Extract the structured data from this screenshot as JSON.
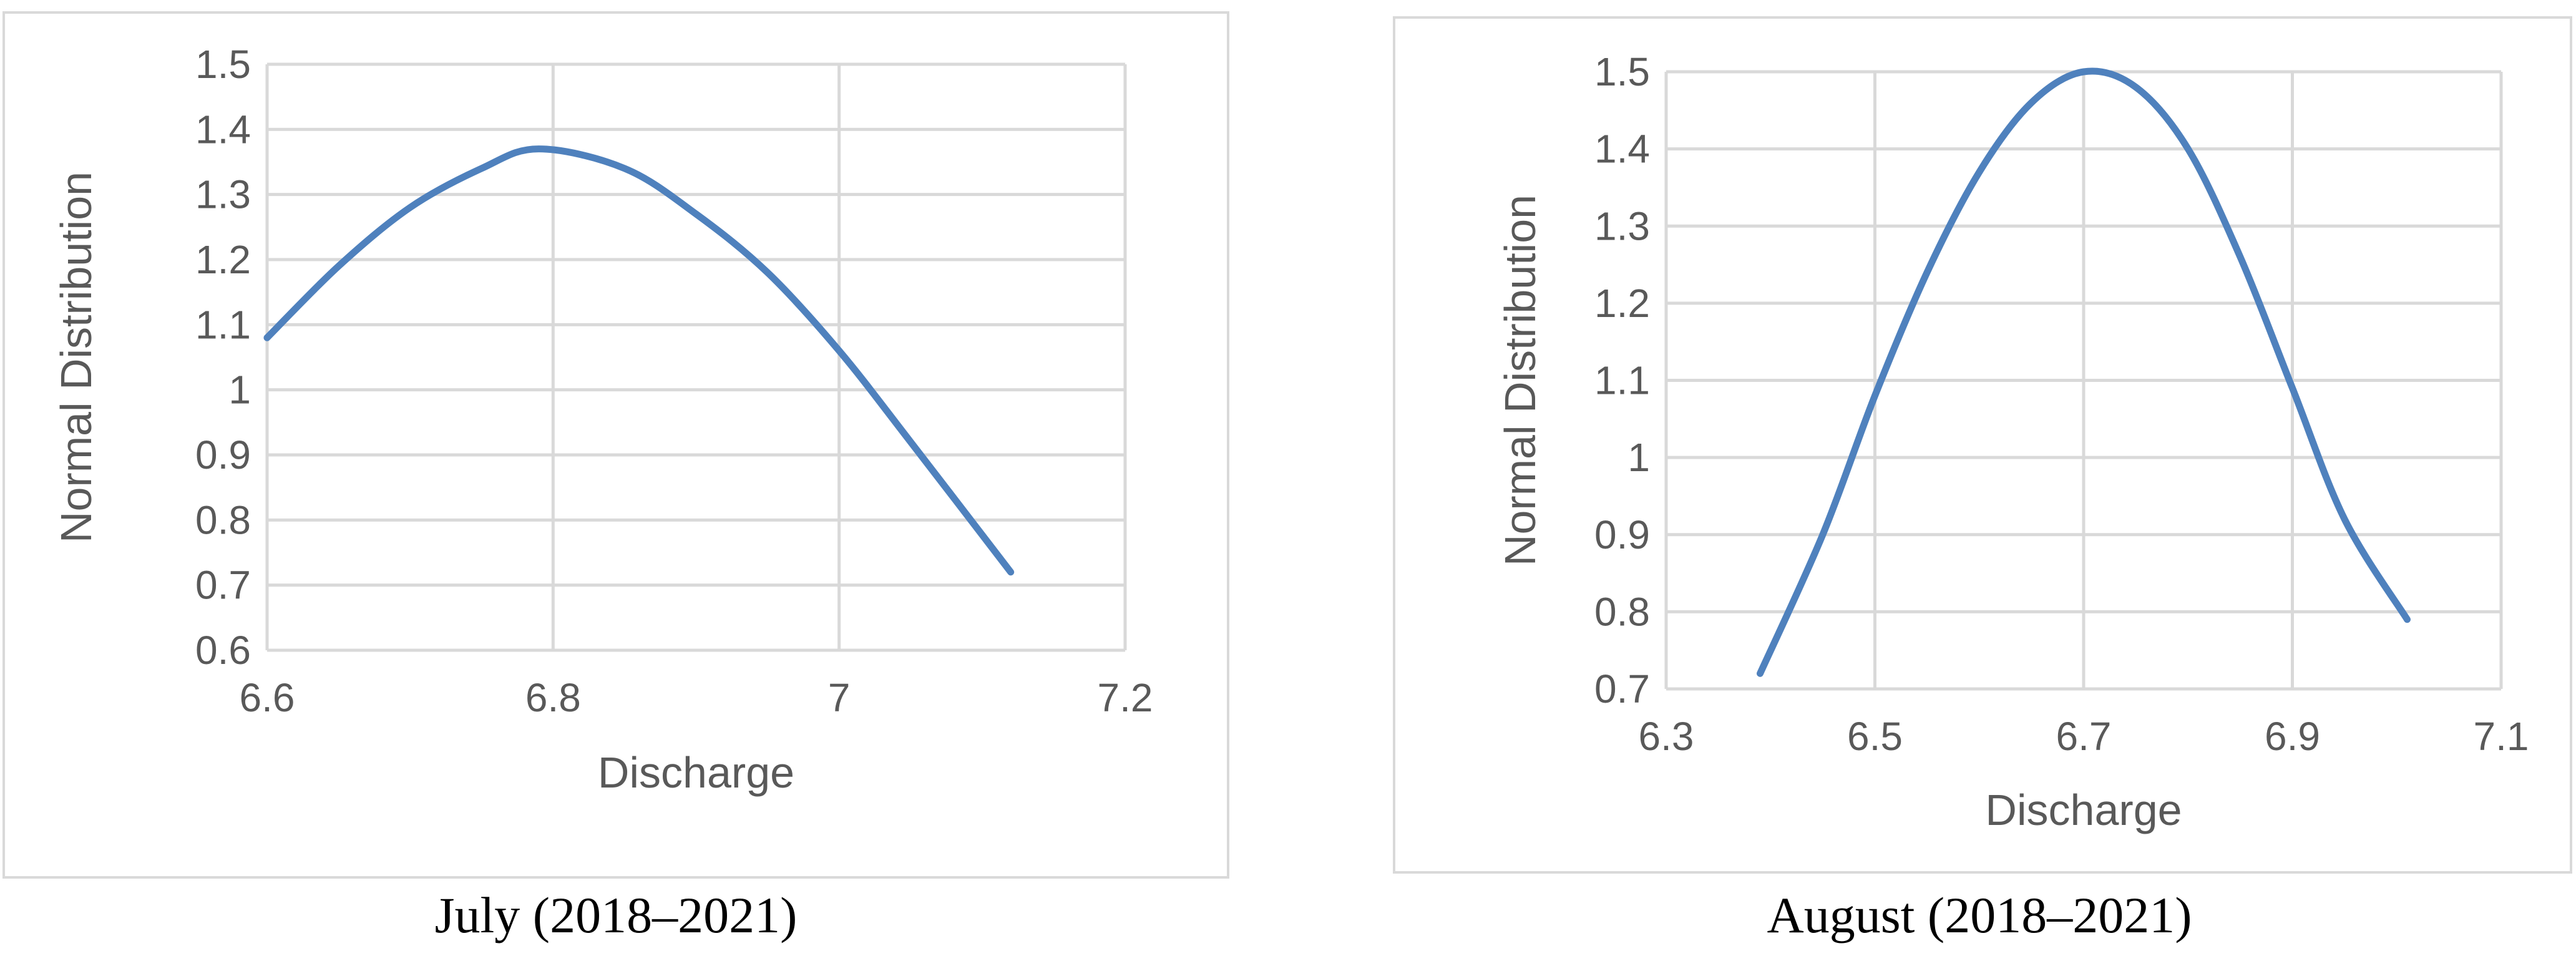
{
  "chart_data": [
    {
      "type": "line",
      "caption": "July (2018–2021)",
      "xlabel": "Discharge",
      "ylabel": "Normal Distribution",
      "xlim": [
        6.6,
        7.2
      ],
      "ylim": [
        0.6,
        1.5
      ],
      "x_ticks": [
        "6.6",
        "6.8",
        "7",
        "7.2"
      ],
      "y_ticks": [
        "0.6",
        "0.7",
        "0.8",
        "0.9",
        "1",
        "1.1",
        "1.2",
        "1.3",
        "1.4",
        "1.5"
      ],
      "grid": true,
      "series": [
        {
          "color": "#4f81bd",
          "x": [
            6.6,
            6.65,
            6.7,
            6.75,
            6.79,
            6.85,
            6.9,
            6.95,
            7.0,
            7.05,
            7.12
          ],
          "y": [
            1.08,
            1.19,
            1.28,
            1.34,
            1.37,
            1.34,
            1.27,
            1.18,
            1.06,
            0.92,
            0.72
          ]
        }
      ]
    },
    {
      "type": "line",
      "caption": "August (2018–2021)",
      "xlabel": "Discharge",
      "ylabel": "Normal Distribution",
      "xlim": [
        6.3,
        7.1
      ],
      "ylim": [
        0.7,
        1.5
      ],
      "x_ticks": [
        "6.3",
        "6.5",
        "6.7",
        "6.9",
        "7.1"
      ],
      "y_ticks": [
        "0.7",
        "0.8",
        "0.9",
        "1",
        "1.1",
        "1.2",
        "1.3",
        "1.4",
        "1.5"
      ],
      "grid": true,
      "series": [
        {
          "color": "#4f81bd",
          "x": [
            6.39,
            6.45,
            6.5,
            6.55,
            6.6,
            6.65,
            6.7,
            6.75,
            6.8,
            6.85,
            6.9,
            6.95,
            7.01
          ],
          "y": [
            0.72,
            0.9,
            1.08,
            1.24,
            1.37,
            1.46,
            1.5,
            1.48,
            1.4,
            1.26,
            1.09,
            0.92,
            0.79
          ]
        }
      ]
    }
  ]
}
